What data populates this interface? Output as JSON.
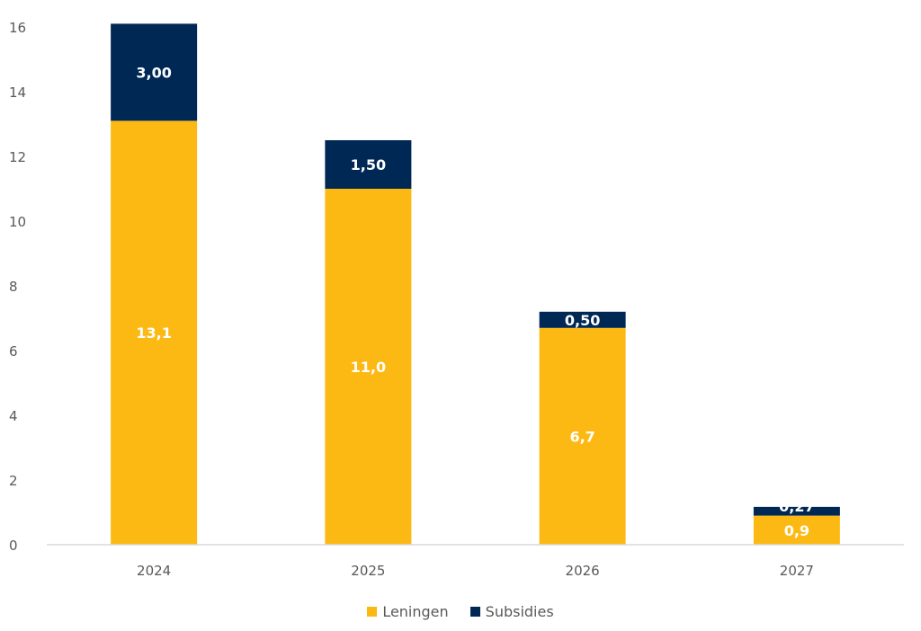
{
  "chart_data": {
    "type": "bar",
    "stacked": true,
    "title": "",
    "xlabel": "",
    "ylabel": "",
    "ylim": [
      0,
      16
    ],
    "yticks": [
      0,
      2,
      4,
      6,
      8,
      10,
      12,
      14,
      16
    ],
    "categories": [
      "2024",
      "2025",
      "2026",
      "2027"
    ],
    "series": [
      {
        "name": "Leningen",
        "color": "#FDB913",
        "values": [
          13.1,
          11.0,
          6.7,
          0.9
        ],
        "labels": [
          "13,1",
          "11,0",
          "6,7",
          "0,9"
        ]
      },
      {
        "name": "Subsidies",
        "color": "#002855",
        "values": [
          3.0,
          1.5,
          0.5,
          0.27
        ],
        "labels": [
          "3,00",
          "1,50",
          "0,50",
          "0,27"
        ]
      }
    ],
    "grid": false,
    "legend": "bottom"
  }
}
